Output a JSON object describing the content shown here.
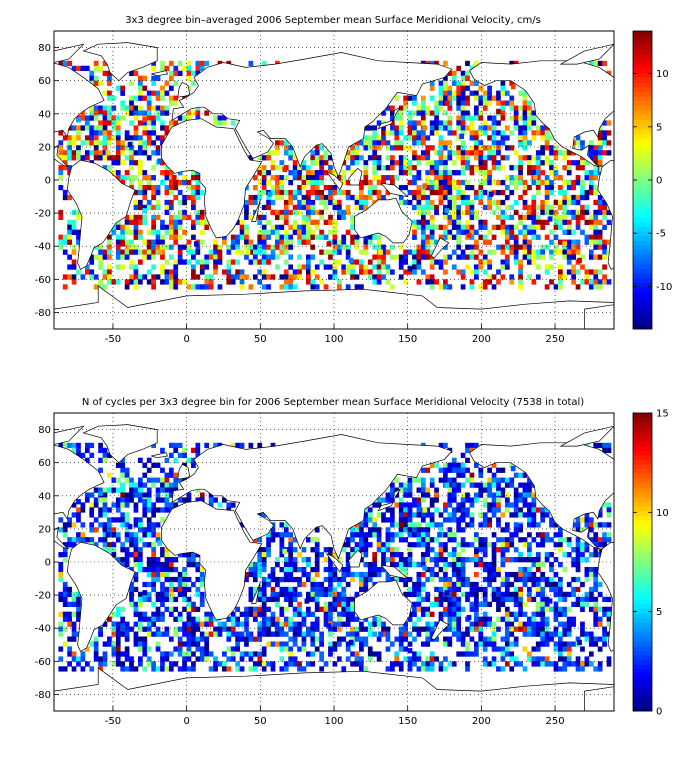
{
  "chart_data": [
    {
      "type": "heatmap",
      "title": "3x3 degree bin–averaged 2006 September mean Surface Meridional Velocity, cm/s",
      "xlim": [
        -90,
        290
      ],
      "ylim": [
        -90,
        90
      ],
      "x_ticks": [
        -50,
        0,
        50,
        100,
        150,
        200,
        250
      ],
      "y_ticks": [
        -80,
        -60,
        -40,
        -20,
        0,
        20,
        40,
        60,
        80
      ],
      "grid": "dotted",
      "colormap": "jet",
      "colorbar": {
        "range": [
          -14,
          14
        ],
        "ticks": [
          -10,
          -5,
          0,
          5,
          10
        ]
      },
      "bin_size_deg": 3,
      "sampled_bins": [
        [
          -75,
          35,
          -6
        ],
        [
          -60,
          40,
          12
        ],
        [
          -45,
          45,
          -3
        ],
        [
          -30,
          35,
          9
        ],
        [
          -40,
          20,
          -12
        ],
        [
          -55,
          15,
          5
        ],
        [
          -20,
          10,
          -8
        ],
        [
          -10,
          0,
          11
        ],
        [
          -30,
          -20,
          -4
        ],
        [
          -45,
          -40,
          13
        ],
        [
          -60,
          -45,
          -9
        ],
        [
          -20,
          -45,
          6
        ],
        [
          5,
          -40,
          -11
        ],
        [
          20,
          -35,
          8
        ],
        [
          40,
          -45,
          3
        ],
        [
          55,
          -10,
          -6
        ],
        [
          65,
          5,
          10
        ],
        [
          80,
          -25,
          -2
        ],
        [
          95,
          -40,
          12
        ],
        [
          110,
          -50,
          -7
        ],
        [
          130,
          -45,
          4
        ],
        [
          150,
          -55,
          -13
        ],
        [
          160,
          30,
          7
        ],
        [
          170,
          15,
          -5
        ],
        [
          175,
          45,
          11
        ],
        [
          185,
          25,
          -9
        ],
        [
          195,
          5,
          3
        ],
        [
          205,
          -10,
          -12
        ],
        [
          210,
          40,
          13
        ],
        [
          220,
          55,
          9
        ],
        [
          225,
          20,
          -4
        ],
        [
          235,
          0,
          6
        ],
        [
          245,
          -25,
          -10
        ],
        [
          255,
          -40,
          5
        ],
        [
          265,
          -50,
          12
        ],
        [
          270,
          15,
          -8
        ],
        [
          280,
          5,
          2
        ],
        [
          190,
          -35,
          10
        ],
        [
          175,
          -20,
          -6
        ],
        [
          160,
          -5,
          8
        ]
      ]
    },
    {
      "type": "heatmap",
      "title": "N of cycles per 3x3 degree bin for 2006 September mean Surface Meridional Velocity (7538 in total)",
      "xlim": [
        -90,
        290
      ],
      "ylim": [
        -90,
        90
      ],
      "x_ticks": [
        -50,
        0,
        50,
        100,
        150,
        200,
        250
      ],
      "y_ticks": [
        -80,
        -60,
        -40,
        -20,
        0,
        20,
        40,
        60,
        80
      ],
      "grid": "dotted",
      "colormap": "jet",
      "colorbar": {
        "range": [
          0,
          15
        ],
        "ticks": [
          0,
          5,
          10,
          15
        ]
      },
      "bin_size_deg": 3,
      "sampled_bins": [
        [
          -75,
          35,
          2
        ],
        [
          -60,
          40,
          4
        ],
        [
          -45,
          45,
          6
        ],
        [
          -30,
          35,
          3
        ],
        [
          -40,
          20,
          2
        ],
        [
          -55,
          15,
          1
        ],
        [
          -20,
          10,
          5
        ],
        [
          -10,
          0,
          2
        ],
        [
          -30,
          -20,
          1
        ],
        [
          -45,
          -40,
          3
        ],
        [
          -60,
          -45,
          2
        ],
        [
          -20,
          -45,
          4
        ],
        [
          5,
          -40,
          1
        ],
        [
          20,
          -35,
          2
        ],
        [
          40,
          -45,
          3
        ],
        [
          55,
          -10,
          2
        ],
        [
          65,
          5,
          8
        ],
        [
          80,
          -25,
          1
        ],
        [
          95,
          -40,
          2
        ],
        [
          110,
          -50,
          1
        ],
        [
          130,
          -45,
          3
        ],
        [
          150,
          -55,
          2
        ],
        [
          160,
          30,
          9
        ],
        [
          170,
          15,
          3
        ],
        [
          175,
          45,
          5
        ],
        [
          185,
          25,
          2
        ],
        [
          195,
          5,
          1
        ],
        [
          205,
          -10,
          2
        ],
        [
          210,
          40,
          6
        ],
        [
          220,
          55,
          3
        ],
        [
          225,
          20,
          2
        ],
        [
          235,
          0,
          1
        ],
        [
          245,
          -25,
          2
        ],
        [
          255,
          -40,
          3
        ],
        [
          265,
          -50,
          1
        ],
        [
          270,
          15,
          2
        ],
        [
          280,
          5,
          1
        ],
        [
          190,
          -35,
          2
        ],
        [
          175,
          -20,
          1
        ],
        [
          160,
          -5,
          4
        ]
      ]
    }
  ]
}
